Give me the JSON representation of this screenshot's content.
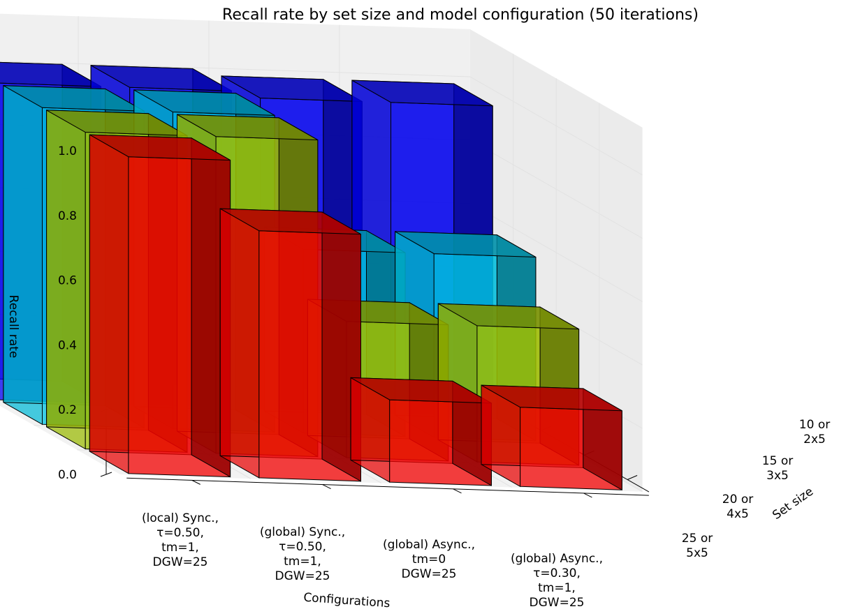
{
  "chart_data": {
    "type": "bar3d",
    "title": "Recall rate by set size and model configuration (50 iterations)",
    "xlabel": "Configurations",
    "ylabel": "Set size",
    "zlabel": "Recall rate",
    "zlim": [
      0,
      1.0
    ],
    "zticks": [
      "0.0",
      "0.2",
      "0.4",
      "0.6",
      "0.8",
      "1.0"
    ],
    "configurations": [
      [
        "(local) Sync.,",
        "τ=0.50,",
        "tm=1,",
        "DGW=25"
      ],
      [
        "(global) Sync.,",
        "τ=0.50,",
        "tm=1,",
        "DGW=25"
      ],
      [
        "(global) Async.,",
        "tm=0",
        "DGW=25"
      ],
      [
        "(global) Async.,",
        "τ=0.30,",
        "tm=1,",
        "DGW=25"
      ]
    ],
    "set_sizes": [
      [
        "10 or",
        "2x5"
      ],
      [
        "15 or",
        "3x5"
      ],
      [
        "20 or",
        "4x5"
      ],
      [
        "25 or",
        "5x5"
      ]
    ],
    "series": [
      {
        "set_size": "10 or 2x5",
        "color": "#0000ff",
        "values": [
          1.0,
          1.0,
          0.98,
          0.98
        ]
      },
      {
        "set_size": "15 or 3x5",
        "color": "#00ccee",
        "values": [
          1.0,
          1.0,
          0.58,
          0.58
        ]
      },
      {
        "set_size": "20 or 4x5",
        "color": "#aacc00",
        "values": [
          1.0,
          1.0,
          0.43,
          0.43
        ]
      },
      {
        "set_size": "25 or 5x5",
        "color": "#ff0000",
        "values": [
          1.0,
          0.78,
          0.26,
          0.25
        ]
      }
    ]
  }
}
